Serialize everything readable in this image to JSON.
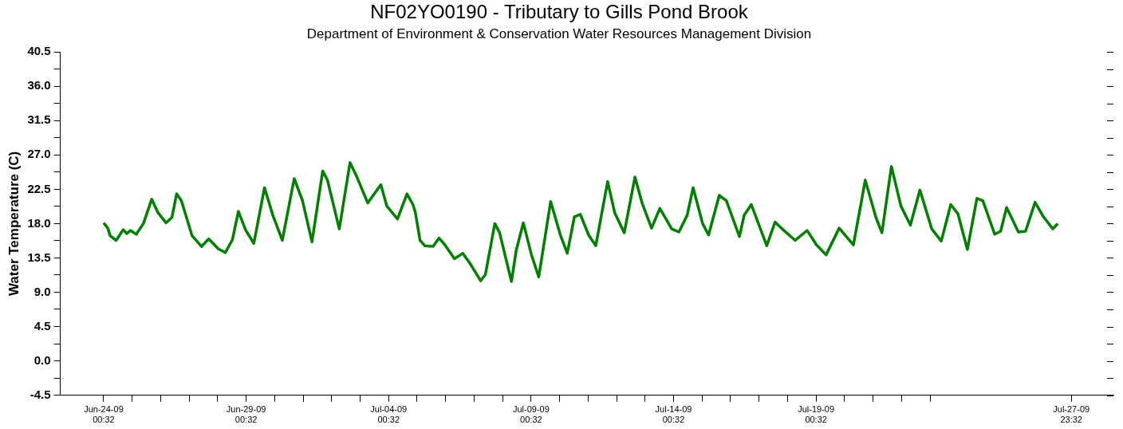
{
  "chart_data": {
    "type": "line",
    "title": "NF02YO0190 - Tributary to Gills Pond Brook",
    "subtitle": "Department of Environment & Conservation Water Resources Management Division",
    "ylabel": "Water Temperature (C)",
    "x": [
      "--06-24T00:32",
      "--06-24T04:00",
      "--06-24T06:00",
      "--06-24T11:00",
      "--06-24T17:00",
      "--06-24T20:00",
      "--06-24T23:00",
      "--06-25T04:00",
      "--06-25T10:00",
      "--06-25T17:00",
      "--06-25T22:00",
      "--06-26T05:00",
      "--06-26T10:00",
      "--06-26T14:00",
      "--06-26T18:00",
      "--06-27T03:00",
      "--06-27T11:00",
      "--06-27T17:00",
      "--06-28T01:00",
      "--06-28T07:00",
      "--06-28T13:00",
      "--06-28T18:00",
      "--06-29T00:00",
      "--06-29T07:00",
      "--06-29T16:00",
      "--06-29T23:00",
      "--06-30T07:00",
      "--06-30T17:00",
      "--07-01T00:00",
      "--07-01T08:00",
      "--07-01T17:00",
      "--07-01T21:00",
      "--07-02T07:00",
      "--07-02T16:00",
      "--07-02T21:00",
      "--07-03T07:00",
      "--07-03T12:00",
      "--07-03T18:00",
      "--07-03T23:00",
      "--07-04T08:00",
      "--07-04T16:00",
      "--07-04T21:00",
      "--07-04T23:00",
      "--07-05T03:00",
      "--07-05T07:00",
      "--07-05T14:00",
      "--07-05T19:00",
      "--07-06T00:00",
      "--07-06T08:00",
      "--07-06T15:00",
      "--07-06T21:00",
      "--07-07T06:00",
      "--07-07T10:00",
      "--07-07T18:00",
      "--07-07T22:00",
      "--07-08T08:00",
      "--07-08T12:00",
      "--07-08T18:00",
      "--07-09T01:00",
      "--07-09T07:00",
      "--07-09T17:00",
      "--07-10T01:00",
      "--07-10T07:00",
      "--07-10T13:00",
      "--07-10T18:00",
      "--07-11T01:00",
      "--07-11T07:00",
      "--07-11T17:00",
      "--07-11T23:00",
      "--07-12T07:00",
      "--07-12T16:00",
      "--07-12T22:00",
      "--07-13T06:00",
      "--07-13T13:00",
      "--07-13T23:00",
      "--07-14T05:00",
      "--07-14T12:00",
      "--07-14T17:00",
      "--07-15T01:00",
      "--07-15T06:00",
      "--07-15T15:00",
      "--07-15T21:00",
      "--07-16T08:00",
      "--07-16T12:00",
      "--07-16T18:00",
      "--07-17T07:00",
      "--07-17T14:00",
      "--07-17T20:00",
      "--07-18T07:00",
      "--07-18T17:00",
      "--07-19T01:00",
      "--07-19T09:00",
      "--07-19T20:00",
      "--07-20T08:00",
      "--07-20T18:00",
      "--07-21T03:00",
      "--07-21T08:00",
      "--07-21T16:00",
      "--07-22T00:00",
      "--07-22T08:00",
      "--07-22T16:00",
      "--07-23T02:00",
      "--07-23T10:00",
      "--07-23T18:00",
      "--07-24T00:00",
      "--07-24T08:00",
      "--07-24T16:00",
      "--07-24T21:00",
      "--07-25T07:00",
      "--07-25T12:00",
      "--07-25T17:00",
      "--07-26T03:00",
      "--07-26T09:00",
      "--07-26T17:00",
      "--07-27T00:00",
      "--07-27T08:00",
      "--07-27T12:00"
    ],
    "series": [
      {
        "color": "#008000",
        "values": [
          18.1,
          17.4,
          16.4,
          15.8,
          17.2,
          16.7,
          17.1,
          16.6,
          18.0,
          21.2,
          19.5,
          18.1,
          18.8,
          21.9,
          21.0,
          16.4,
          15.0,
          16.0,
          14.7,
          14.2,
          15.9,
          19.6,
          17.2,
          15.4,
          22.7,
          19.1,
          15.8,
          23.9,
          21.0,
          15.6,
          24.9,
          23.7,
          17.3,
          26.0,
          24.4,
          20.7,
          21.8,
          23.1,
          20.3,
          18.6,
          21.9,
          20.5,
          19.5,
          15.8,
          15.1,
          15.0,
          16.1,
          15.2,
          13.4,
          14.1,
          12.8,
          10.5,
          11.3,
          18.0,
          16.8,
          10.4,
          14.5,
          18.1,
          13.8,
          11.0,
          20.9,
          16.6,
          14.1,
          18.9,
          19.2,
          16.5,
          15.1,
          23.5,
          19.4,
          16.8,
          24.1,
          20.7,
          17.4,
          20.0,
          17.3,
          16.9,
          19.1,
          22.7,
          18.0,
          16.5,
          21.7,
          21.0,
          16.3,
          19.1,
          20.5,
          15.1,
          18.2,
          17.3,
          15.8,
          17.1,
          15.2,
          13.9,
          17.4,
          15.2,
          23.7,
          18.8,
          16.8,
          25.5,
          20.3,
          17.8,
          22.4,
          17.3,
          15.7,
          20.5,
          19.3,
          14.6,
          21.3,
          21.0,
          16.6,
          17.0,
          20.1,
          16.9,
          17.0,
          20.8,
          18.9,
          17.3,
          18.0
        ]
      }
    ],
    "xlim": [
      "--06-22T12:00",
      "--07-29T11:00"
    ],
    "xticks": [
      {
        "value": "--06-24T00:32",
        "label": "Jun-24-09\n00:32"
      },
      {
        "value": "--06-25T00:32",
        "label": null
      },
      {
        "value": "--06-26T00:32",
        "label": null
      },
      {
        "value": "--06-27T00:32",
        "label": null
      },
      {
        "value": "--06-28T00:32",
        "label": null
      },
      {
        "value": "--06-29T00:32",
        "label": "Jun-29-09\n00:32"
      },
      {
        "value": "--06-30T00:32",
        "label": null
      },
      {
        "value": "--07-01T00:32",
        "label": null
      },
      {
        "value": "--07-02T00:32",
        "label": null
      },
      {
        "value": "--07-03T00:32",
        "label": null
      },
      {
        "value": "--07-04T00:32",
        "label": "Jul-04-09\n00:32"
      },
      {
        "value": "--07-05T00:32",
        "label": null
      },
      {
        "value": "--07-06T00:32",
        "label": null
      },
      {
        "value": "--07-07T00:32",
        "label": null
      },
      {
        "value": "--07-08T00:32",
        "label": null
      },
      {
        "value": "--07-09T00:32",
        "label": "Jul-09-09\n00:32"
      },
      {
        "value": "--07-10T00:32",
        "label": null
      },
      {
        "value": "--07-11T00:32",
        "label": null
      },
      {
        "value": "--07-12T00:32",
        "label": null
      },
      {
        "value": "--07-13T00:32",
        "label": null
      },
      {
        "value": "--07-14T00:32",
        "label": "Jul-14-09\n00:32"
      },
      {
        "value": "--07-15T00:32",
        "label": null
      },
      {
        "value": "--07-16T00:32",
        "label": null
      },
      {
        "value": "--07-17T00:32",
        "label": null
      },
      {
        "value": "--07-18T00:32",
        "label": null
      },
      {
        "value": "--07-19T00:32",
        "label": "Jul-19-09\n00:32"
      },
      {
        "value": "--07-20T00:32",
        "label": null
      },
      {
        "value": "--07-21T00:32",
        "label": null
      },
      {
        "value": "--07-22T00:32",
        "label": null
      },
      {
        "value": "--07-23T00:32",
        "label": null
      },
      {
        "value": "--07-27T23:32",
        "label": "Jul-27-09\n23:32"
      }
    ],
    "ylim": [
      -4.5,
      40.5
    ],
    "yticks": [
      {
        "value": -4.5,
        "label": "-4.5"
      },
      {
        "value": -2.25,
        "label": null
      },
      {
        "value": 0,
        "label": "0.0"
      },
      {
        "value": 2.25,
        "label": null
      },
      {
        "value": 4.5,
        "label": "4.5"
      },
      {
        "value": 6.75,
        "label": null
      },
      {
        "value": 9,
        "label": "9.0"
      },
      {
        "value": 11.25,
        "label": null
      },
      {
        "value": 13.5,
        "label": "13.5"
      },
      {
        "value": 15.75,
        "label": null
      },
      {
        "value": 18,
        "label": "18.0"
      },
      {
        "value": 20.25,
        "label": null
      },
      {
        "value": 22.5,
        "label": "22.5"
      },
      {
        "value": 24.75,
        "label": null
      },
      {
        "value": 27,
        "label": "27.0"
      },
      {
        "value": 29.25,
        "label": null
      },
      {
        "value": 31.5,
        "label": "31.5"
      },
      {
        "value": 33.75,
        "label": null
      },
      {
        "value": 36,
        "label": "36.0"
      },
      {
        "value": 38.25,
        "label": null
      },
      {
        "value": 40.5,
        "label": "40.5"
      }
    ]
  }
}
